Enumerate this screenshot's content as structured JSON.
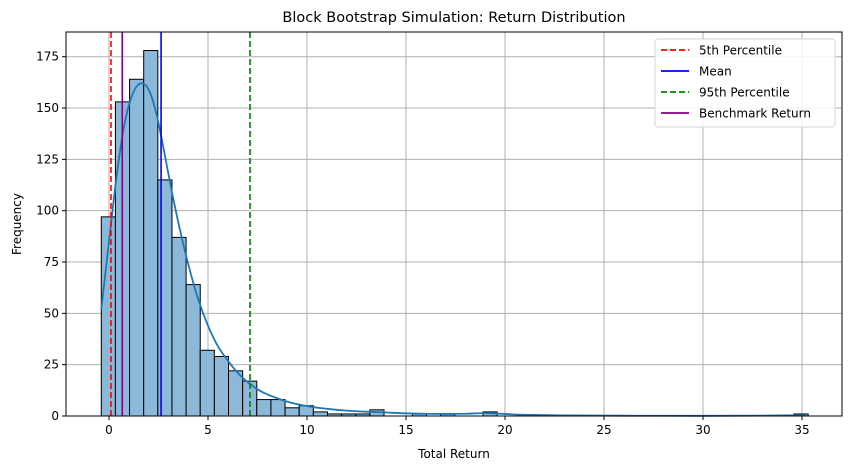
{
  "chart_data": {
    "type": "bar",
    "subtype": "histogram_with_kde",
    "title": "Block Bootstrap Simulation: Return Distribution",
    "xlabel": "Total Return",
    "ylabel": "Frequency",
    "xlim": [
      -2.2,
      37.0
    ],
    "ylim": [
      0,
      187
    ],
    "xticks": [
      0,
      5,
      10,
      15,
      20,
      25,
      30,
      35
    ],
    "yticks": [
      0,
      25,
      50,
      75,
      100,
      125,
      150,
      175
    ],
    "grid": true,
    "legend_position": "upper right",
    "bins": {
      "start": -0.39,
      "width": 0.714,
      "count": 50,
      "values": [
        97,
        153,
        164,
        178,
        115,
        87,
        64,
        32,
        29,
        22,
        17,
        8,
        8,
        4,
        5,
        2,
        1,
        1,
        1,
        3,
        0,
        0,
        1,
        0,
        1,
        0,
        0,
        2,
        0,
        0,
        0,
        0,
        0,
        0,
        0,
        0,
        0,
        0,
        0,
        0,
        0,
        0,
        0,
        0,
        0,
        0,
        0,
        0,
        0,
        1
      ]
    },
    "kde": {
      "x": [
        -0.39,
        0.0,
        0.4,
        0.8,
        1.2,
        1.6,
        2.0,
        2.4,
        2.8,
        3.2,
        3.6,
        4.0,
        4.5,
        5.0,
        5.5,
        6.0,
        6.5,
        7.0,
        7.5,
        8.0,
        9.0,
        10.0,
        11.0,
        12.0,
        13.0,
        14.0,
        15.0,
        16.0,
        17.0,
        18.0,
        19.0,
        20.0,
        21.0,
        23.0,
        26.0,
        30.0,
        33.0,
        35.2
      ],
      "y": [
        52,
        85,
        118,
        143,
        157,
        162,
        159,
        147,
        128,
        108,
        90,
        74,
        57,
        44,
        34,
        27,
        21,
        16.5,
        13,
        10.5,
        7,
        4.8,
        3.5,
        2.6,
        2.1,
        1.7,
        1.3,
        1.1,
        1.0,
        1.1,
        1.4,
        1.0,
        0.6,
        0.3,
        0.15,
        0.1,
        0.2,
        0.4
      ]
    },
    "vlines": [
      {
        "name": "5th Percentile",
        "x": 0.1,
        "color": "#ff0000",
        "style": "dashed"
      },
      {
        "name": "Mean",
        "x": 2.63,
        "color": "#0000ff",
        "style": "solid"
      },
      {
        "name": "95th Percentile",
        "x": 7.12,
        "color": "#008000",
        "style": "dashed"
      },
      {
        "name": "Benchmark Return",
        "x": 0.67,
        "color": "#800080",
        "style": "solid"
      }
    ],
    "colors": {
      "bar_fill": "#8cb8d9",
      "bar_edge": "#000000",
      "kde_line": "#1f77b4",
      "grid": "#b0b0b0"
    }
  }
}
